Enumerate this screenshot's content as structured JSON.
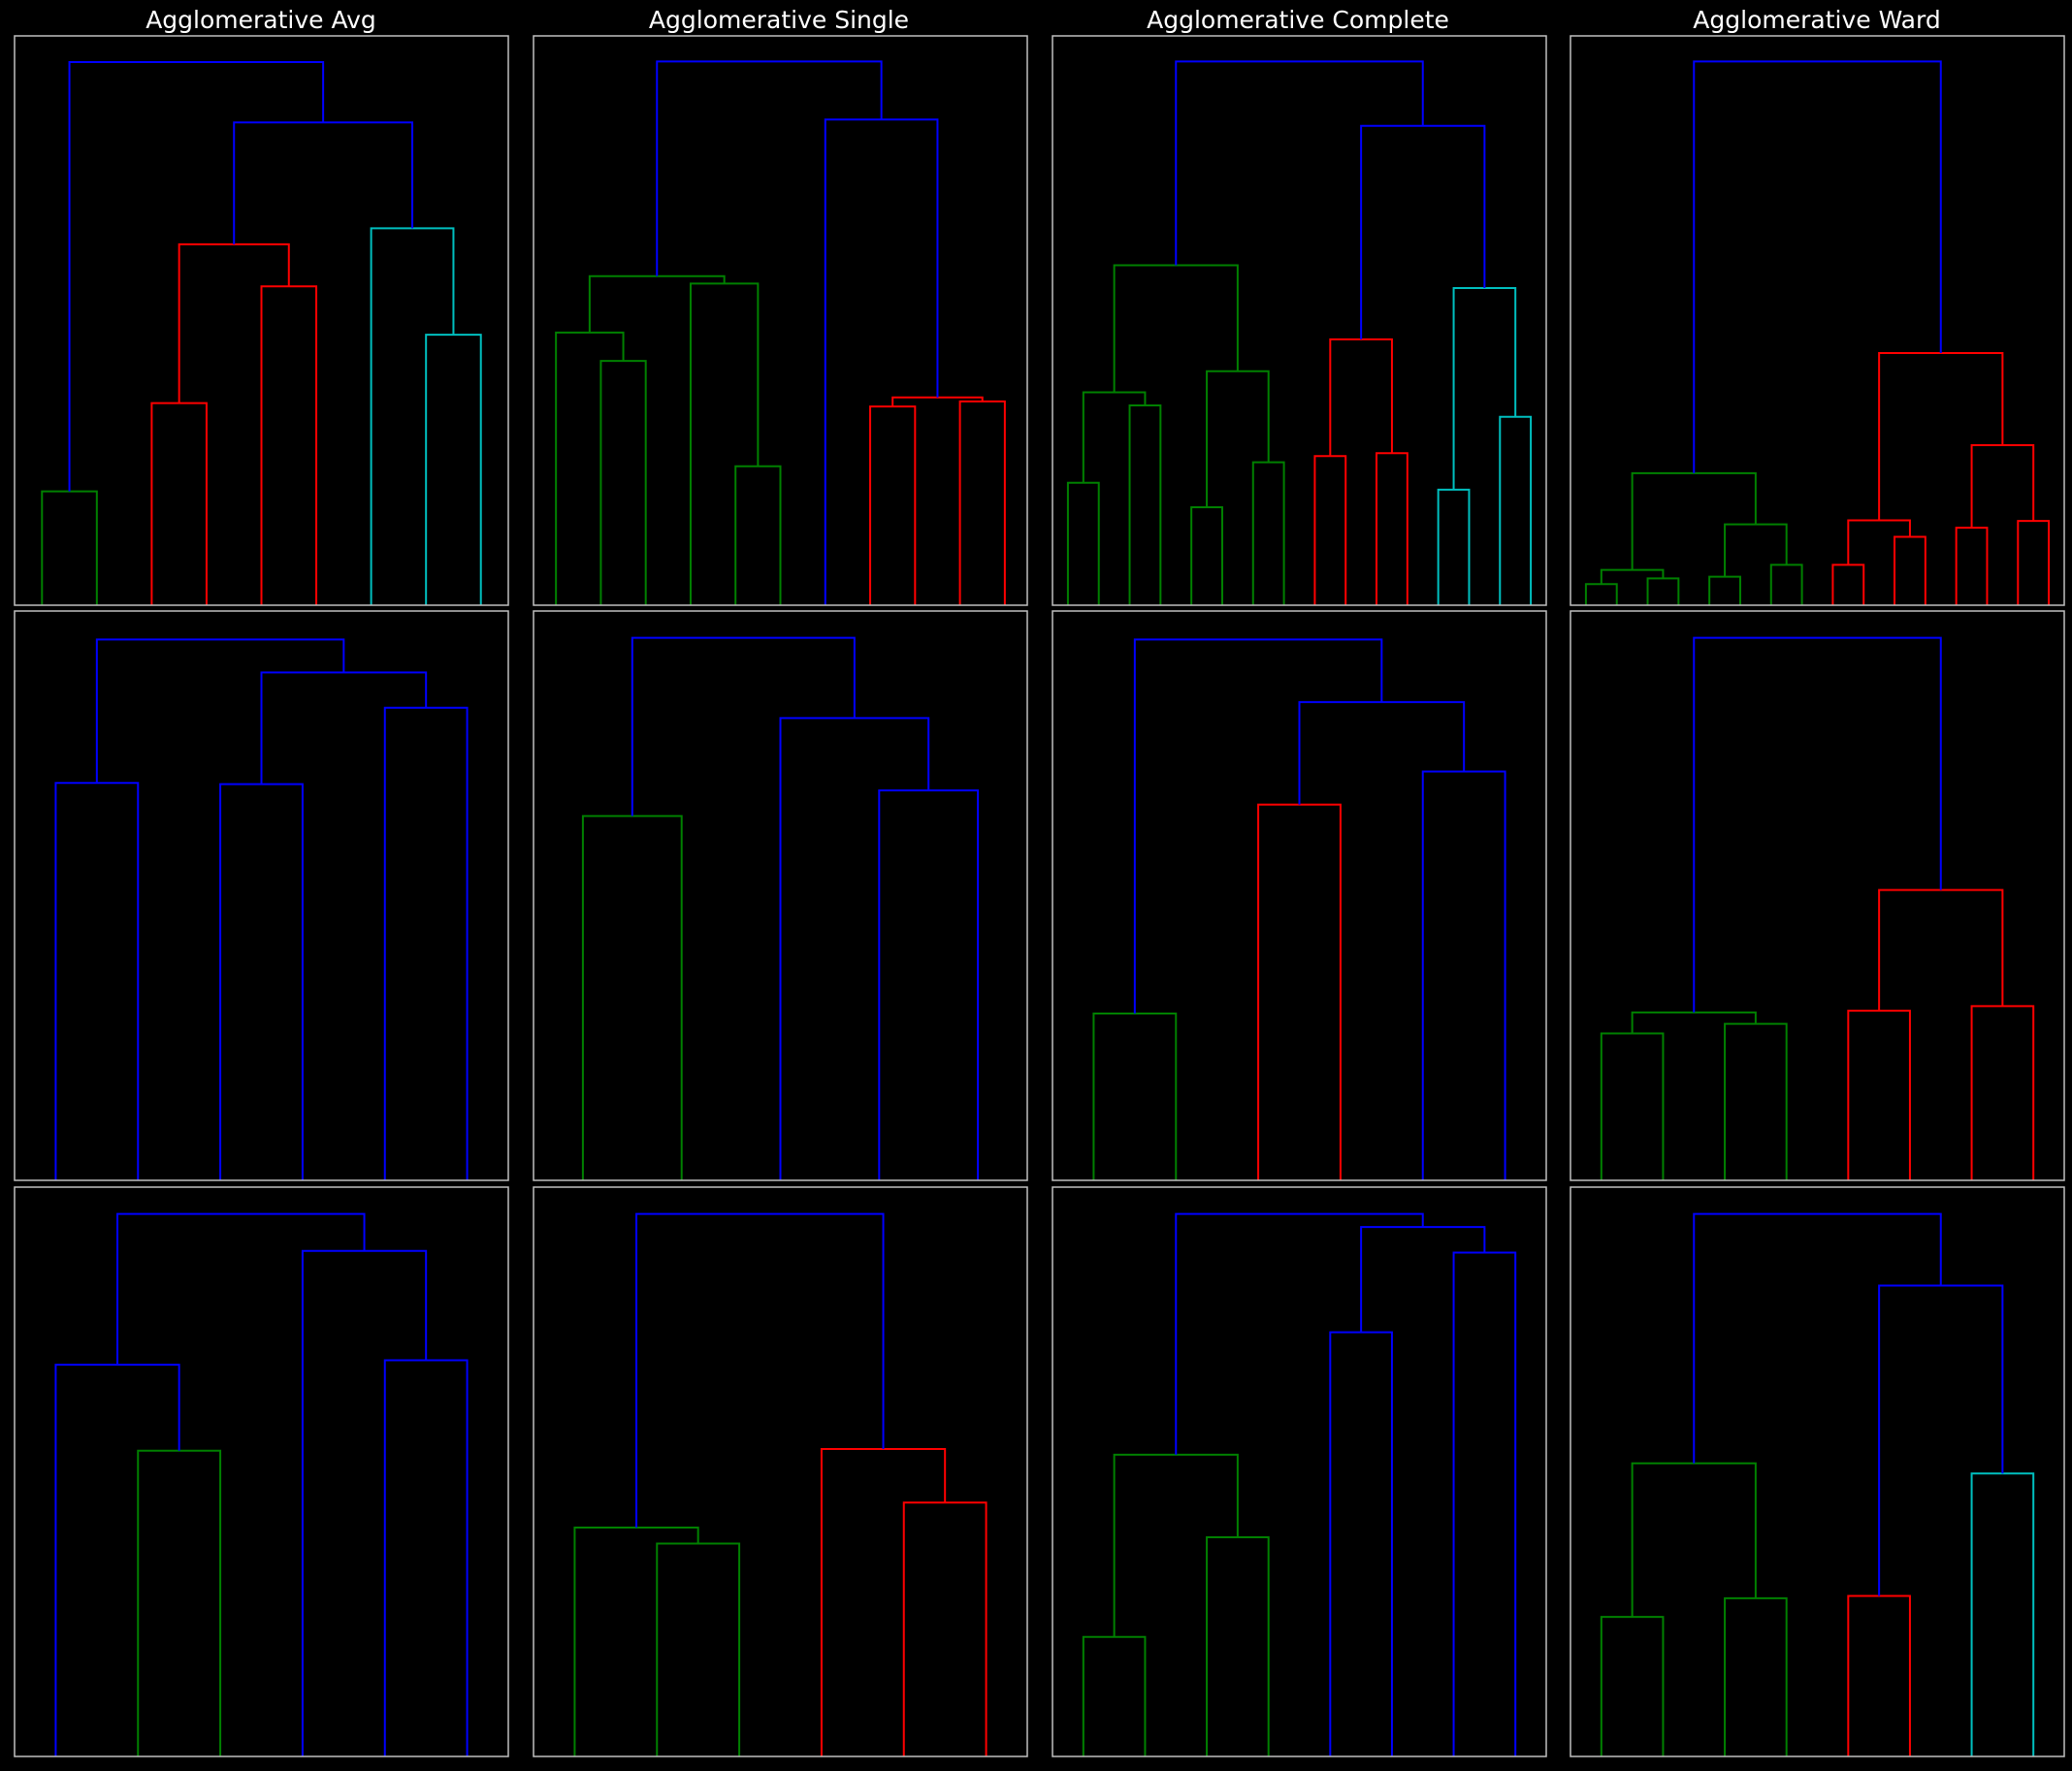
{
  "colors": {
    "background": "#000000",
    "frame": "#bfbfbf",
    "title": "#ffffff",
    "clusters": {
      "b": "#0000ff",
      "g": "#008000",
      "r": "#ff0000",
      "c": "#00bfbf"
    }
  },
  "column_titles": [
    "Agglomerative Avg",
    "Agglomerative Single",
    "Agglomerative Complete",
    "Agglomerative Ward"
  ],
  "chart_data": [
    {
      "type": "dendrogram",
      "title": "Agglomerative Avg",
      "row": 0,
      "col": 0,
      "leaves": 9,
      "ylim": [
        0,
        1
      ],
      "links": [
        {
          "l": 0,
          "r": 1,
          "h": 0.2,
          "c": "g"
        },
        {
          "l": 2,
          "r": 3,
          "h": 0.355,
          "c": "r"
        },
        {
          "l": 4,
          "r": 5,
          "h": 0.56,
          "c": "r"
        },
        {
          "l": "L1",
          "r": "L2",
          "h": 0.634,
          "c": "r"
        },
        {
          "l": 7,
          "r": 8,
          "h": 0.475,
          "c": "c"
        },
        {
          "l": 6,
          "r": "L4",
          "h": 0.662,
          "c": "c"
        },
        {
          "l": "L3",
          "r": "L5",
          "h": 0.848,
          "c": "b"
        },
        {
          "l": "L0",
          "r": "L6",
          "h": 0.954,
          "c": "b"
        }
      ]
    },
    {
      "type": "dendrogram",
      "title": "Agglomerative Single",
      "row": 0,
      "col": 1,
      "leaves": 11,
      "ylim": [
        0,
        1
      ],
      "links": [
        {
          "l": 1,
          "r": 2,
          "h": 0.429,
          "c": "g"
        },
        {
          "l": 0,
          "r": "L0",
          "h": 0.479,
          "c": "g"
        },
        {
          "l": 4,
          "r": 5,
          "h": 0.244,
          "c": "g"
        },
        {
          "l": 3,
          "r": "L2",
          "h": 0.565,
          "c": "g"
        },
        {
          "l": "L1",
          "r": "L3",
          "h": 0.578,
          "c": "g"
        },
        {
          "l": 7,
          "r": 8,
          "h": 0.349,
          "c": "r"
        },
        {
          "l": 9,
          "r": 10,
          "h": 0.358,
          "c": "r"
        },
        {
          "l": "L5",
          "r": "L6",
          "h": 0.365,
          "c": "r"
        },
        {
          "l": 6,
          "r": "L7",
          "h": 0.853,
          "c": "b"
        },
        {
          "l": "L4",
          "r": "L8",
          "h": 0.955,
          "c": "b"
        }
      ]
    },
    {
      "type": "dendrogram",
      "title": "Agglomerative Complete",
      "row": 0,
      "col": 2,
      "leaves": 16,
      "ylim": [
        0,
        1
      ],
      "links": [
        {
          "l": 0,
          "r": 1,
          "h": 0.215,
          "c": "g"
        },
        {
          "l": 2,
          "r": 3,
          "h": 0.351,
          "c": "g"
        },
        {
          "l": "L0",
          "r": "L1",
          "h": 0.374,
          "c": "g"
        },
        {
          "l": 4,
          "r": 5,
          "h": 0.172,
          "c": "g"
        },
        {
          "l": 6,
          "r": 7,
          "h": 0.251,
          "c": "g"
        },
        {
          "l": "L3",
          "r": "L4",
          "h": 0.411,
          "c": "g"
        },
        {
          "l": "L2",
          "r": "L5",
          "h": 0.597,
          "c": "g"
        },
        {
          "l": 8,
          "r": 9,
          "h": 0.262,
          "c": "r"
        },
        {
          "l": 10,
          "r": 11,
          "h": 0.267,
          "c": "r"
        },
        {
          "l": "L7",
          "r": "L8",
          "h": 0.467,
          "c": "r"
        },
        {
          "l": 12,
          "r": 13,
          "h": 0.203,
          "c": "c"
        },
        {
          "l": 14,
          "r": 15,
          "h": 0.331,
          "c": "c"
        },
        {
          "l": "L10",
          "r": "L11",
          "h": 0.557,
          "c": "c"
        },
        {
          "l": "L9",
          "r": "L12",
          "h": 0.842,
          "c": "b"
        },
        {
          "l": "L6",
          "r": "L13",
          "h": 0.955,
          "c": "b"
        }
      ]
    },
    {
      "type": "dendrogram",
      "title": "Agglomerative Ward",
      "row": 0,
      "col": 3,
      "leaves": 16,
      "ylim": [
        0,
        1
      ],
      "links": [
        {
          "l": 0,
          "r": 1,
          "h": 0.037,
          "c": "g"
        },
        {
          "l": 2,
          "r": 3,
          "h": 0.047,
          "c": "g"
        },
        {
          "l": "L0",
          "r": "L1",
          "h": 0.062,
          "c": "g"
        },
        {
          "l": 4,
          "r": 5,
          "h": 0.05,
          "c": "g"
        },
        {
          "l": 6,
          "r": 7,
          "h": 0.071,
          "c": "g"
        },
        {
          "l": "L3",
          "r": "L4",
          "h": 0.142,
          "c": "g"
        },
        {
          "l": "L2",
          "r": "L5",
          "h": 0.232,
          "c": "g"
        },
        {
          "l": 8,
          "r": 9,
          "h": 0.071,
          "c": "r"
        },
        {
          "l": 10,
          "r": 11,
          "h": 0.12,
          "c": "r"
        },
        {
          "l": "L7",
          "r": "L8",
          "h": 0.149,
          "c": "r"
        },
        {
          "l": 12,
          "r": 13,
          "h": 0.136,
          "c": "r"
        },
        {
          "l": 14,
          "r": 15,
          "h": 0.148,
          "c": "r"
        },
        {
          "l": "L10",
          "r": "L11",
          "h": 0.281,
          "c": "r"
        },
        {
          "l": "L9",
          "r": "L12",
          "h": 0.443,
          "c": "r"
        },
        {
          "l": "L6",
          "r": "L13",
          "h": 0.955,
          "c": "b"
        }
      ]
    },
    {
      "type": "dendrogram",
      "row": 1,
      "col": 0,
      "leaves": 6,
      "ylim": [
        0,
        1
      ],
      "links": [
        {
          "l": 0,
          "r": 1,
          "h": 0.698,
          "c": "b"
        },
        {
          "l": 2,
          "r": 3,
          "h": 0.696,
          "c": "b"
        },
        {
          "l": 4,
          "r": 5,
          "h": 0.83,
          "c": "b"
        },
        {
          "l": "L1",
          "r": "L2",
          "h": 0.892,
          "c": "b"
        },
        {
          "l": "L0",
          "r": "L3",
          "h": 0.95,
          "c": "b"
        }
      ]
    },
    {
      "type": "dendrogram",
      "row": 1,
      "col": 1,
      "leaves": 5,
      "ylim": [
        0,
        1
      ],
      "links": [
        {
          "l": 0,
          "r": 1,
          "h": 0.64,
          "c": "g"
        },
        {
          "l": 3,
          "r": 4,
          "h": 0.685,
          "c": "b"
        },
        {
          "l": 2,
          "r": "L1",
          "h": 0.812,
          "c": "b"
        },
        {
          "l": "L0",
          "r": "L2",
          "h": 0.953,
          "c": "b"
        }
      ]
    },
    {
      "type": "dendrogram",
      "row": 1,
      "col": 2,
      "leaves": 6,
      "ylim": [
        0,
        1
      ],
      "links": [
        {
          "l": 0,
          "r": 1,
          "h": 0.293,
          "c": "g"
        },
        {
          "l": 2,
          "r": 3,
          "h": 0.66,
          "c": "r"
        },
        {
          "l": 4,
          "r": 5,
          "h": 0.718,
          "c": "b"
        },
        {
          "l": "L1",
          "r": "L2",
          "h": 0.84,
          "c": "b"
        },
        {
          "l": "L0",
          "r": "L3",
          "h": 0.95,
          "c": "b"
        }
      ]
    },
    {
      "type": "dendrogram",
      "row": 1,
      "col": 3,
      "leaves": 8,
      "ylim": [
        0,
        1
      ],
      "links": [
        {
          "l": 0,
          "r": 1,
          "h": 0.258,
          "c": "g"
        },
        {
          "l": 2,
          "r": 3,
          "h": 0.275,
          "c": "g"
        },
        {
          "l": "L0",
          "r": "L1",
          "h": 0.295,
          "c": "g"
        },
        {
          "l": 4,
          "r": 5,
          "h": 0.298,
          "c": "r"
        },
        {
          "l": 6,
          "r": 7,
          "h": 0.306,
          "c": "r"
        },
        {
          "l": "L3",
          "r": "L4",
          "h": 0.51,
          "c": "r"
        },
        {
          "l": "L2",
          "r": "L5",
          "h": 0.953,
          "c": "b"
        }
      ]
    },
    {
      "type": "dendrogram",
      "row": 2,
      "col": 0,
      "leaves": 6,
      "ylim": [
        0,
        1
      ],
      "links": [
        {
          "l": 1,
          "r": 2,
          "h": 0.537,
          "c": "g"
        },
        {
          "l": 0,
          "r": "L0",
          "h": 0.688,
          "c": "b"
        },
        {
          "l": 4,
          "r": 5,
          "h": 0.696,
          "c": "b"
        },
        {
          "l": 3,
          "r": "L2",
          "h": 0.888,
          "c": "b"
        },
        {
          "l": "L1",
          "r": "L3",
          "h": 0.953,
          "c": "b"
        }
      ]
    },
    {
      "type": "dendrogram",
      "row": 2,
      "col": 1,
      "leaves": 6,
      "ylim": [
        0,
        1
      ],
      "links": [
        {
          "l": 1,
          "r": 2,
          "h": 0.374,
          "c": "g"
        },
        {
          "l": 0,
          "r": "L0",
          "h": 0.402,
          "c": "g"
        },
        {
          "l": 4,
          "r": 5,
          "h": 0.446,
          "c": "r"
        },
        {
          "l": 3,
          "r": "L2",
          "h": 0.54,
          "c": "r"
        },
        {
          "l": "L1",
          "r": "L3",
          "h": 0.953,
          "c": "b"
        }
      ]
    },
    {
      "type": "dendrogram",
      "row": 2,
      "col": 2,
      "leaves": 8,
      "ylim": [
        0,
        1
      ],
      "links": [
        {
          "l": 0,
          "r": 1,
          "h": 0.21,
          "c": "g"
        },
        {
          "l": 2,
          "r": 3,
          "h": 0.385,
          "c": "g"
        },
        {
          "l": "L0",
          "r": "L1",
          "h": 0.53,
          "c": "g"
        },
        {
          "l": 4,
          "r": 5,
          "h": 0.745,
          "c": "b"
        },
        {
          "l": 6,
          "r": 7,
          "h": 0.885,
          "c": "b"
        },
        {
          "l": "L3",
          "r": "L4",
          "h": 0.93,
          "c": "b"
        },
        {
          "l": "L2",
          "r": "L5",
          "h": 0.953,
          "c": "b"
        }
      ]
    },
    {
      "type": "dendrogram",
      "row": 2,
      "col": 3,
      "leaves": 8,
      "ylim": [
        0,
        1
      ],
      "links": [
        {
          "l": 0,
          "r": 1,
          "h": 0.245,
          "c": "g"
        },
        {
          "l": 2,
          "r": 3,
          "h": 0.278,
          "c": "g"
        },
        {
          "l": "L0",
          "r": "L1",
          "h": 0.515,
          "c": "g"
        },
        {
          "l": 4,
          "r": 5,
          "h": 0.282,
          "c": "r"
        },
        {
          "l": 6,
          "r": 7,
          "h": 0.497,
          "c": "c"
        },
        {
          "l": "L3",
          "r": "L4",
          "h": 0.827,
          "c": "b"
        },
        {
          "l": "L2",
          "r": "L5",
          "h": 0.953,
          "c": "b"
        }
      ]
    }
  ]
}
